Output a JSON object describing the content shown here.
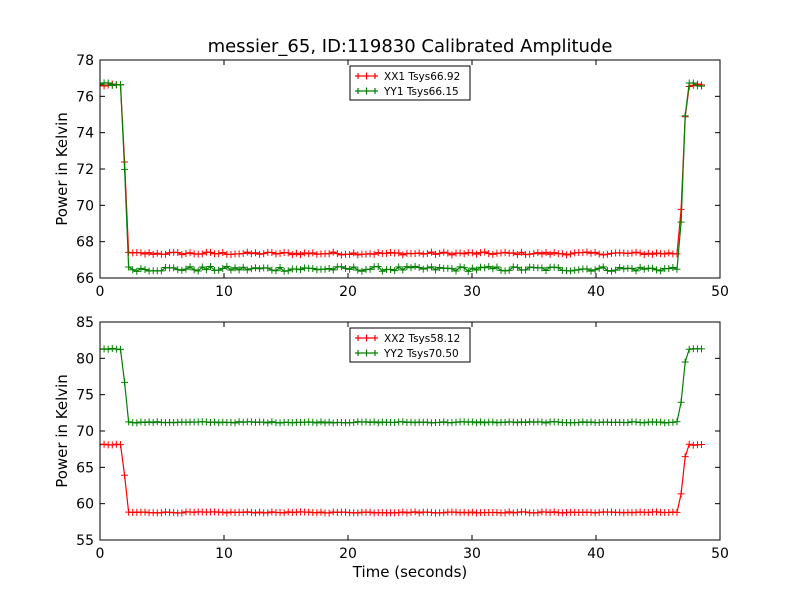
{
  "chart_data": [
    {
      "type": "line",
      "title": "messier_65, ID:119830 Calibrated Amplitude",
      "xlabel": "",
      "ylabel": "Power in Kelvin",
      "xlim": [
        0,
        50
      ],
      "ylim": [
        66,
        78
      ],
      "xticks": [
        0,
        10,
        20,
        30,
        40,
        50
      ],
      "yticks": [
        66,
        68,
        70,
        72,
        74,
        76,
        78
      ],
      "legend_position": "upper center",
      "grid": false,
      "series": [
        {
          "name": "XX1 Tsys66.92",
          "color": "#ff0000",
          "high": 76.6,
          "low": 67.35,
          "rise_start": 1.8,
          "drop_end": 2.2,
          "rise_from": 46.7,
          "rise_to": 47.3,
          "x_start": 0,
          "x_end": 48.6,
          "step": 0.33,
          "noise": 0.08
        },
        {
          "name": "YY1 Tsys66.15",
          "color": "#008000",
          "high": 76.65,
          "low": 66.5,
          "rise_start": 1.8,
          "drop_end": 2.2,
          "rise_from": 46.7,
          "rise_to": 47.3,
          "x_start": 0,
          "x_end": 48.6,
          "step": 0.33,
          "noise": 0.14
        }
      ]
    },
    {
      "type": "line",
      "title": "",
      "xlabel": "Time (seconds)",
      "ylabel": "Power in Kelvin",
      "xlim": [
        0,
        50
      ],
      "ylim": [
        55,
        85
      ],
      "xticks": [
        0,
        10,
        20,
        30,
        40,
        50
      ],
      "yticks": [
        55,
        60,
        65,
        70,
        75,
        80,
        85
      ],
      "legend_position": "upper center",
      "grid": false,
      "series": [
        {
          "name": "XX2 Tsys58.12",
          "color": "#ff0000",
          "high": 68.1,
          "low": 58.8,
          "rise_start": 1.8,
          "drop_end": 2.2,
          "rise_from": 46.7,
          "rise_to": 47.3,
          "x_start": 0,
          "x_end": 48.6,
          "step": 0.33,
          "noise": 0.08
        },
        {
          "name": "YY2 Tsys70.50",
          "color": "#008000",
          "high": 81.3,
          "low": 71.2,
          "rise_start": 1.8,
          "drop_end": 2.2,
          "rise_from": 46.7,
          "rise_to": 47.3,
          "x_start": 0,
          "x_end": 48.6,
          "step": 0.33,
          "noise": 0.08
        }
      ]
    }
  ]
}
